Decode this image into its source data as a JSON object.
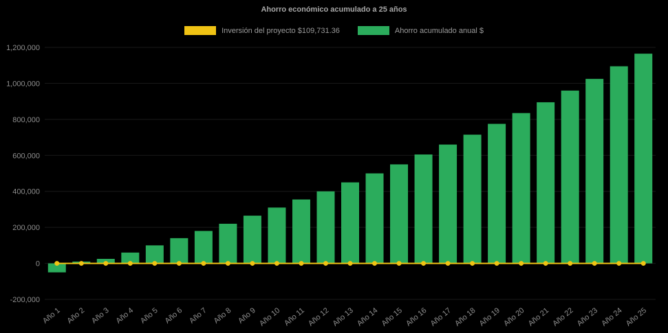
{
  "title": "Ahorro económico acumulado a 25 años",
  "legend": {
    "investment_label": "Inversión del proyecto $109,731.36",
    "savings_label": "Ahorro acumulado anual $"
  },
  "colors": {
    "investment": "#F0C314",
    "savings": "#2BAC5C",
    "grid": "rgba(255,255,255,0.10)",
    "tick_text": "#8f8f8f",
    "title_text": "#a8a8a8",
    "background": "#000000"
  },
  "chart_data": {
    "type": "bar",
    "title": "Ahorro económico acumulado a 25 años",
    "categories": [
      "Año 1",
      "Año 2",
      "Año 3",
      "Año 4",
      "Año 5",
      "Año 6",
      "Año 7",
      "Año 8",
      "Año 9",
      "Año 10",
      "Año 11",
      "Año 12",
      "Año 13",
      "Año 14",
      "Año 15",
      "Año 16",
      "Año 17",
      "Año 18",
      "Año 19",
      "Año 20",
      "Año 21",
      "Año 22",
      "Año 23",
      "Año 24",
      "Año 25"
    ],
    "series": [
      {
        "name": "Inversión del proyecto $109,731.36",
        "type": "line",
        "color": "#F0C314",
        "values": [
          0,
          0,
          0,
          0,
          0,
          0,
          0,
          0,
          0,
          0,
          0,
          0,
          0,
          0,
          0,
          0,
          0,
          0,
          0,
          0,
          0,
          0,
          0,
          0,
          0
        ]
      },
      {
        "name": "Ahorro acumulado anual $",
        "type": "bar",
        "color": "#2BAC5C",
        "values": [
          -50000,
          10000,
          25000,
          60000,
          100000,
          140000,
          180000,
          220000,
          265000,
          310000,
          355000,
          400000,
          450000,
          500000,
          550000,
          605000,
          660000,
          715000,
          775000,
          835000,
          895000,
          960000,
          1025000,
          1095000,
          1165000
        ]
      }
    ],
    "xlabel": "",
    "ylabel": "",
    "ylim": [
      -200000,
      1200000
    ],
    "ytick_step": 200000,
    "grid": true,
    "legend_position": "top"
  }
}
